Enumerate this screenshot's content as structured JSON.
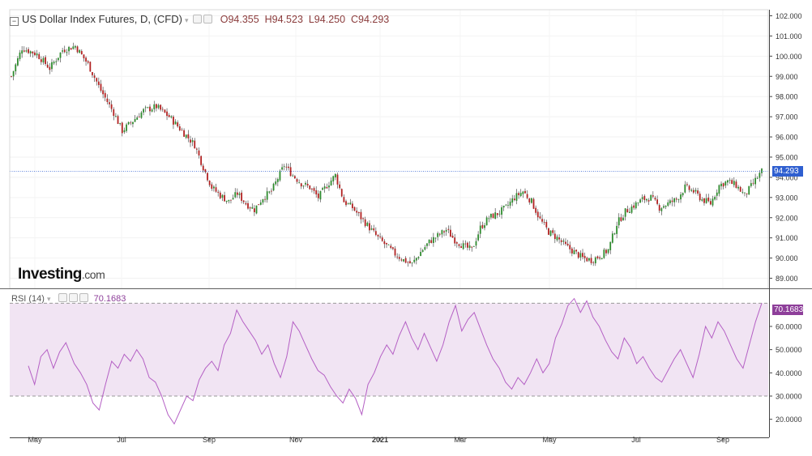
{
  "header": {
    "title": "US Dollar Index Futures, D, (CFD)",
    "open": "O94.355",
    "high": "H94.523",
    "low": "L94.250",
    "close": "C94.293"
  },
  "rsi_header": {
    "label": "RSI (14)",
    "value": "70.1683"
  },
  "logo": {
    "main": "Investing",
    "suffix": ".com"
  },
  "price_tag": "94.293",
  "rsi_tag": "70.1683",
  "colors": {
    "up": "#2e8b2e",
    "down": "#b22222",
    "rsi_line": "#b45fc4",
    "rsi_band": "#f1e4f3",
    "last_price": "#2f5fd0",
    "rsi_tag": "#8e3f9a"
  },
  "chart_data": [
    {
      "type": "candlestick",
      "title": "US Dollar Index Futures, D, (CFD)",
      "y_ticks": [
        "89.000",
        "90.000",
        "91.000",
        "92.000",
        "93.000",
        "94.000",
        "95.000",
        "96.000",
        "97.000",
        "98.000",
        "99.000",
        "100.000",
        "101.000",
        "102.000"
      ],
      "ylim": [
        88.5,
        102.3
      ],
      "x_ticks": [
        "May",
        "Jul",
        "Sep",
        "Nov",
        "2021",
        "Mar",
        "May",
        "Jul",
        "Sep"
      ],
      "last_price": 94.293,
      "close_path": [
        [
          0,
          99.0
        ],
        [
          5,
          100.4
        ],
        [
          12,
          100.1
        ],
        [
          18,
          99.4
        ],
        [
          24,
          100.3
        ],
        [
          30,
          100.5
        ],
        [
          36,
          99.6
        ],
        [
          42,
          98.3
        ],
        [
          48,
          97.2
        ],
        [
          52,
          96.3
        ],
        [
          56,
          96.7
        ],
        [
          62,
          97.3
        ],
        [
          68,
          97.5
        ],
        [
          74,
          97.0
        ],
        [
          80,
          96.3
        ],
        [
          86,
          95.6
        ],
        [
          90,
          94.5
        ],
        [
          94,
          93.5
        ],
        [
          98,
          93.1
        ],
        [
          102,
          92.8
        ],
        [
          106,
          93.2
        ],
        [
          110,
          92.7
        ],
        [
          114,
          92.4
        ],
        [
          118,
          93.0
        ],
        [
          122,
          93.3
        ],
        [
          128,
          94.6
        ],
        [
          132,
          94.1
        ],
        [
          136,
          93.7
        ],
        [
          140,
          93.5
        ],
        [
          144,
          93.0
        ],
        [
          148,
          93.6
        ],
        [
          152,
          94.1
        ],
        [
          156,
          92.8
        ],
        [
          160,
          92.5
        ],
        [
          164,
          92.0
        ],
        [
          168,
          91.5
        ],
        [
          172,
          91.0
        ],
        [
          176,
          90.6
        ],
        [
          180,
          90.2
        ],
        [
          184,
          89.9
        ],
        [
          188,
          89.7
        ],
        [
          192,
          90.3
        ],
        [
          196,
          90.8
        ],
        [
          200,
          91.1
        ],
        [
          204,
          91.4
        ],
        [
          208,
          90.9
        ],
        [
          212,
          90.6
        ],
        [
          216,
          90.4
        ],
        [
          220,
          91.5
        ],
        [
          224,
          92.0
        ],
        [
          228,
          92.2
        ],
        [
          232,
          92.5
        ],
        [
          236,
          93.0
        ],
        [
          240,
          93.3
        ],
        [
          244,
          92.8
        ],
        [
          248,
          91.9
        ],
        [
          252,
          91.3
        ],
        [
          256,
          91.0
        ],
        [
          260,
          90.6
        ],
        [
          264,
          90.3
        ],
        [
          268,
          90.0
        ],
        [
          272,
          89.9
        ],
        [
          276,
          90.1
        ],
        [
          280,
          90.4
        ],
        [
          284,
          91.7
        ],
        [
          288,
          92.3
        ],
        [
          292,
          92.6
        ],
        [
          296,
          92.9
        ],
        [
          300,
          93.0
        ],
        [
          304,
          92.5
        ],
        [
          308,
          92.7
        ],
        [
          312,
          92.9
        ],
        [
          316,
          93.5
        ],
        [
          320,
          93.3
        ],
        [
          324,
          92.9
        ],
        [
          328,
          92.7
        ],
        [
          332,
          93.6
        ],
        [
          336,
          93.8
        ],
        [
          340,
          93.6
        ],
        [
          344,
          93.1
        ],
        [
          348,
          93.7
        ],
        [
          352,
          94.3
        ]
      ]
    },
    {
      "type": "line",
      "title": "RSI (14)",
      "y_ticks": [
        "20.0000",
        "30.0000",
        "40.0000",
        "50.0000",
        "60.0000"
      ],
      "ylim": [
        15,
        75
      ],
      "band": [
        30,
        70
      ],
      "last_value": 70.1683,
      "points": [
        [
          0,
          43
        ],
        [
          3,
          35
        ],
        [
          6,
          47
        ],
        [
          9,
          50
        ],
        [
          12,
          42
        ],
        [
          15,
          49
        ],
        [
          18,
          53
        ],
        [
          22,
          44
        ],
        [
          25,
          40
        ],
        [
          28,
          35
        ],
        [
          31,
          27
        ],
        [
          34,
          24
        ],
        [
          37,
          35
        ],
        [
          40,
          45
        ],
        [
          43,
          42
        ],
        [
          46,
          48
        ],
        [
          49,
          45
        ],
        [
          52,
          50
        ],
        [
          55,
          46
        ],
        [
          58,
          38
        ],
        [
          61,
          36
        ],
        [
          64,
          30
        ],
        [
          67,
          22
        ],
        [
          70,
          18
        ],
        [
          73,
          24
        ],
        [
          76,
          30
        ],
        [
          79,
          28
        ],
        [
          82,
          37
        ],
        [
          85,
          42
        ],
        [
          88,
          45
        ],
        [
          91,
          41
        ],
        [
          94,
          52
        ],
        [
          97,
          57
        ],
        [
          100,
          67
        ],
        [
          103,
          62
        ],
        [
          106,
          58
        ],
        [
          109,
          54
        ],
        [
          112,
          48
        ],
        [
          115,
          52
        ],
        [
          118,
          44
        ],
        [
          121,
          38
        ],
        [
          124,
          47
        ],
        [
          127,
          62
        ],
        [
          130,
          58
        ],
        [
          133,
          52
        ],
        [
          136,
          46
        ],
        [
          139,
          41
        ],
        [
          142,
          39
        ],
        [
          145,
          34
        ],
        [
          148,
          30
        ],
        [
          151,
          27
        ],
        [
          154,
          33
        ],
        [
          157,
          29
        ],
        [
          160,
          22
        ],
        [
          163,
          35
        ],
        [
          166,
          40
        ],
        [
          169,
          47
        ],
        [
          172,
          52
        ],
        [
          175,
          48
        ],
        [
          178,
          56
        ],
        [
          181,
          62
        ],
        [
          184,
          55
        ],
        [
          187,
          50
        ],
        [
          190,
          57
        ],
        [
          193,
          51
        ],
        [
          196,
          45
        ],
        [
          199,
          52
        ],
        [
          202,
          62
        ],
        [
          205,
          69
        ],
        [
          208,
          58
        ],
        [
          211,
          63
        ],
        [
          214,
          66
        ],
        [
          217,
          59
        ],
        [
          220,
          52
        ],
        [
          223,
          46
        ],
        [
          226,
          42
        ],
        [
          229,
          36
        ],
        [
          232,
          33
        ],
        [
          235,
          38
        ],
        [
          238,
          35
        ],
        [
          241,
          40
        ],
        [
          244,
          46
        ],
        [
          247,
          40
        ],
        [
          250,
          44
        ],
        [
          253,
          55
        ],
        [
          256,
          61
        ],
        [
          259,
          69
        ],
        [
          262,
          72
        ],
        [
          265,
          66
        ],
        [
          268,
          71
        ],
        [
          271,
          64
        ],
        [
          274,
          60
        ],
        [
          277,
          54
        ],
        [
          280,
          49
        ],
        [
          283,
          46
        ],
        [
          286,
          55
        ],
        [
          289,
          51
        ],
        [
          292,
          44
        ],
        [
          295,
          47
        ],
        [
          298,
          42
        ],
        [
          301,
          38
        ],
        [
          304,
          36
        ],
        [
          307,
          41
        ],
        [
          310,
          46
        ],
        [
          313,
          50
        ],
        [
          316,
          44
        ],
        [
          319,
          38
        ],
        [
          322,
          48
        ],
        [
          325,
          60
        ],
        [
          328,
          55
        ],
        [
          331,
          62
        ],
        [
          334,
          58
        ],
        [
          337,
          52
        ],
        [
          340,
          46
        ],
        [
          343,
          42
        ],
        [
          346,
          52
        ],
        [
          349,
          62
        ],
        [
          352,
          70
        ]
      ]
    }
  ]
}
